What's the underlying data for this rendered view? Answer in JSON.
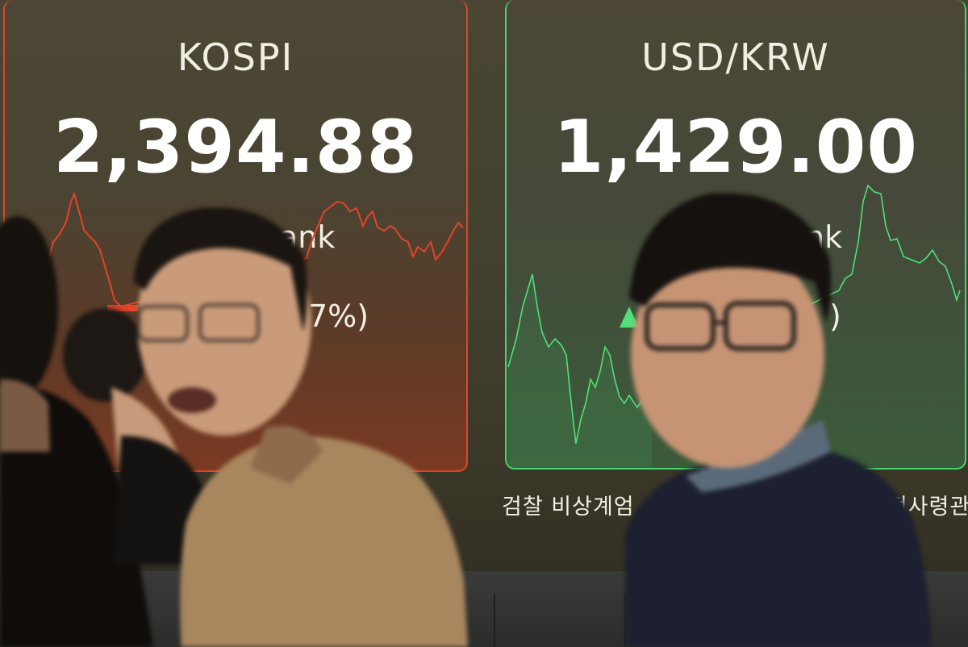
{
  "kospi": {
    "title": "KOSPI",
    "value": "2,394.88",
    "sub_partial": "ank",
    "pct_partial": "7%)",
    "line_color": "#e2442a"
  },
  "usdkrw": {
    "title": "USD/KRW",
    "value": "1,429.00",
    "sub_partial": "nk",
    "pct_partial": ")",
    "line_color": "#4fe07a"
  },
  "ticker": {
    "left_text": "검찰 비상계엄 ",
    "right_text": "수전사령관"
  },
  "colors": {
    "down": "#e2442a",
    "up": "#4fe07a",
    "screen": "#4a4633"
  }
}
